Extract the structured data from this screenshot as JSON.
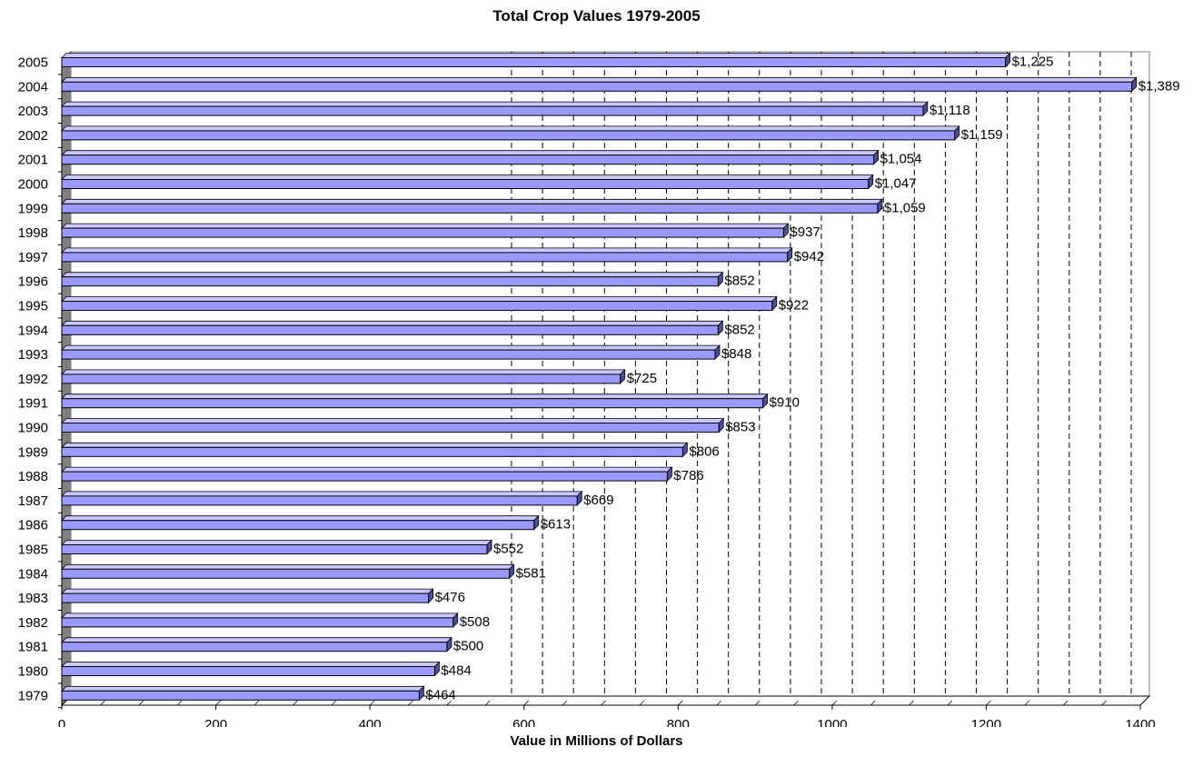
{
  "chart_data": {
    "type": "bar",
    "orientation": "horizontal",
    "title": "Total Crop Values 1979-2005",
    "xlabel": "Value in Millions of Dollars",
    "ylabel": "",
    "xlim": [
      0,
      1400
    ],
    "x_ticks": [
      "0",
      "200",
      "400",
      "600",
      "800",
      "1000",
      "1200",
      "1400"
    ],
    "grid": "vertical dashed lines, right portion of plot",
    "bar_color": "#9999ff",
    "categories": [
      "2005",
      "2004",
      "2003",
      "2002",
      "2001",
      "2000",
      "1999",
      "1998",
      "1997",
      "1996",
      "1995",
      "1994",
      "1993",
      "1992",
      "1991",
      "1990",
      "1989",
      "1988",
      "1987",
      "1986",
      "1985",
      "1984",
      "1983",
      "1982",
      "1981",
      "1980",
      "1979"
    ],
    "values": [
      1225,
      1389,
      1118,
      1159,
      1054,
      1047,
      1059,
      937,
      942,
      852,
      922,
      852,
      848,
      725,
      910,
      853,
      806,
      786,
      669,
      613,
      552,
      581,
      476,
      508,
      500,
      484,
      464
    ],
    "data_labels": [
      "$1,225",
      "$1,389",
      "$1,118",
      "$1,159",
      "$1,054",
      "$1,047",
      "$1,059",
      "$937",
      "$942",
      "$852",
      "$922",
      "$852",
      "$848",
      "$725",
      "$910",
      "$853",
      "$806",
      "$786",
      "$669",
      "$613",
      "$552",
      "$581",
      "$476",
      "$508",
      "$500",
      "$484",
      "$464"
    ]
  }
}
